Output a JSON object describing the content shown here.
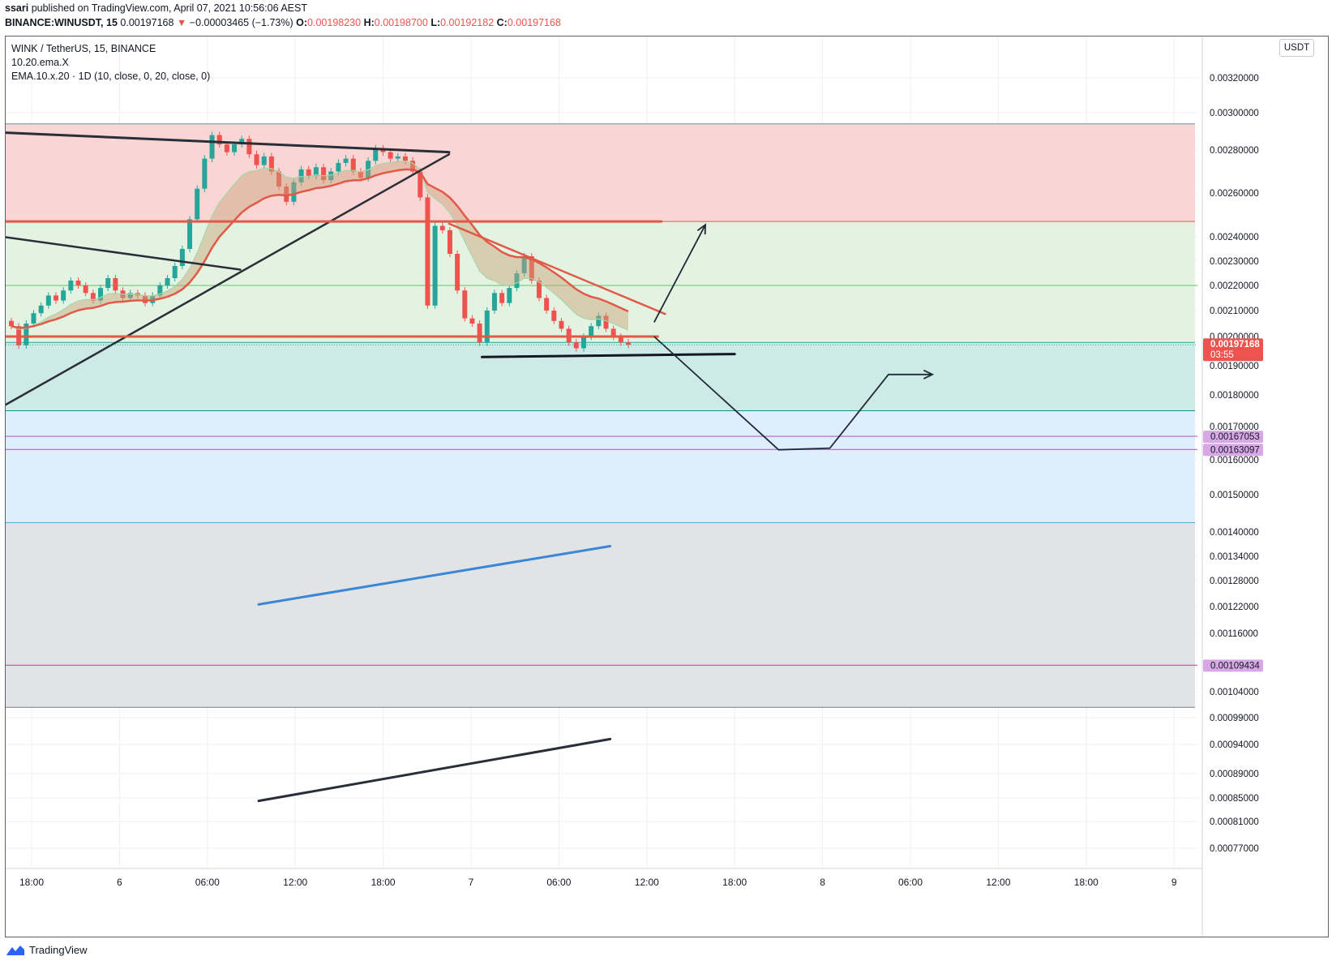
{
  "header": {
    "author": "ssari",
    "published_text": "published on TradingView.com, April 07, 2021 10:56:06 AEST",
    "symbol_line": "BINANCE:WINUSDT, 15",
    "last_price": "0.00197168",
    "change_arrow": "▼",
    "change": "−0.00003465 (−1.73%)",
    "open_label": "O:",
    "open": "0.00198230",
    "high_label": "H:",
    "high": "0.00198700",
    "low_label": "L:",
    "low": "0.00192182",
    "close_label": "C:",
    "close": "0.00197168"
  },
  "legend": {
    "title": "WINK / TetherUS, 15, BINANCE",
    "indicator1": "10.20.ema.X",
    "indicator2": "EMA.10.x.20 · 1D (10, close, 0, 20, close, 0)"
  },
  "currency_button": "USDT",
  "footer": {
    "brand": "TradingView"
  },
  "colors": {
    "red_zone": "#f9d5d3",
    "green_zone": "#e4f3e1",
    "teal_zone": "#cdeae7",
    "blue_zone": "#deeefc",
    "gray_zone": "#e2e3e5",
    "bullish": "#26a69a",
    "bearish": "#ef5350",
    "price_tag": "#ef5350",
    "purple_line": "#b063c8"
  },
  "chart_data": {
    "type": "candlestick",
    "ylim": [
      0.00073,
      0.00335
    ],
    "x_ticks": [
      "18:00",
      "6",
      "06:00",
      "12:00",
      "18:00",
      "7",
      "06:00",
      "12:00",
      "18:00",
      "8",
      "06:00",
      "12:00",
      "18:00",
      "9"
    ],
    "y_ticks": [
      "0.00320000",
      "0.00300000",
      "0.00280000",
      "0.00260000",
      "0.00240000",
      "0.00230000",
      "0.00220000",
      "0.00210000",
      "0.00200000",
      "0.00190000",
      "0.00180000",
      "0.00170000",
      "0.00160000",
      "0.00150000",
      "0.00140000",
      "0.00134000",
      "0.00128000",
      "0.00122000",
      "0.00116000",
      "0.00104000",
      "0.00099000",
      "0.00094000",
      "0.00089000",
      "0.00085000",
      "0.00081000",
      "0.00077000"
    ],
    "y_tick_values": [
      0.0032,
      0.003,
      0.0028,
      0.0026,
      0.0024,
      0.0023,
      0.0022,
      0.0021,
      0.002,
      0.0019,
      0.0018,
      0.0017,
      0.0016,
      0.0015,
      0.0014,
      0.00134,
      0.00128,
      0.00122,
      0.00116,
      0.00104,
      0.00099,
      0.00094,
      0.00089,
      0.00085,
      0.00081,
      0.00077
    ],
    "price_labels": [
      {
        "value": 0.00197168,
        "text": "0.00197168",
        "countdown": "03:55",
        "color": "#ef5350"
      },
      {
        "value": 0.00167053,
        "text": "0.00167053",
        "color": "#ce93d8"
      },
      {
        "value": 0.00163097,
        "text": "0.00163097",
        "color": "#ce93d8"
      },
      {
        "value": 0.00109434,
        "text": "0.00109434",
        "color": "#ce93d8"
      }
    ],
    "zones": [
      {
        "from": 0.00294,
        "to": 0.00247,
        "color": "#f9d5d3",
        "edge": "#5b8fb0",
        "tag": "0"
      },
      {
        "from": 0.00247,
        "to": 0.00198,
        "color": "#e4f3e1",
        "edge": "#ef5350",
        "tag": "0"
      },
      {
        "from": 0.00198,
        "to": 0.00175,
        "color": "#cdeae7",
        "edge": "#26a69a",
        "tag": "0"
      },
      {
        "from": 0.00175,
        "to": 0.001425,
        "color": "#deeefc",
        "edge": "#1e8a8a",
        "tag": "0"
      },
      {
        "from": 0.001425,
        "to": 0.00101,
        "color": "#e2e3e5",
        "edge": "#5aa9d6",
        "tag": "1"
      }
    ],
    "levels": [
      {
        "value": 0.0022,
        "color": "#81c784"
      },
      {
        "value": 0.00167053,
        "color": "#b063c8"
      },
      {
        "value": 0.00163097,
        "color": "#b063c8"
      },
      {
        "value": 0.00109434,
        "color": "#b063c8"
      }
    ],
    "trendlines": [
      {
        "x1": "05 14:15",
        "y1": 0.0029,
        "x2": "06 22:30",
        "y2": 0.00279,
        "color": "#2a2e39",
        "width": 3
      },
      {
        "x1": "05 15:30",
        "y1": 0.00175,
        "x2": "06 22:30",
        "y2": 0.00278,
        "color": "#2a2e39",
        "width": 2.5
      },
      {
        "x1": "05 15:30",
        "y1": 0.002405,
        "x2": "06 08:15",
        "y2": 0.002265,
        "color": "#2a2e39",
        "width": 2.5
      },
      {
        "x1": "05 15:30",
        "y1": 0.00247,
        "x2": "07 13:00",
        "y2": 0.00247,
        "color": "#e05a47",
        "width": 3
      },
      {
        "x1": "05 15:30",
        "y1": 0.002,
        "x2": "07 12:45",
        "y2": 0.002,
        "color": "#e05a47",
        "width": 3
      },
      {
        "x1": "06 22:30",
        "y1": 0.00246,
        "x2": "07 13:15",
        "y2": 0.002087,
        "color": "#e05a47",
        "width": 2.5
      },
      {
        "x1": "07 00:45",
        "y1": 0.00193,
        "x2": "07 18:00",
        "y2": 0.00194,
        "color": "#131722",
        "width": 3
      },
      {
        "x1": "06 09:30",
        "y1": 0.001225,
        "x2": "07 09:30",
        "y2": 0.001365,
        "color": "#3a87d6",
        "width": 3
      },
      {
        "x1": "06 09:30",
        "y1": 0.000845,
        "x2": "07 09:30",
        "y2": 0.00095,
        "color": "#2a2e39",
        "width": 3
      }
    ],
    "projection_paths": [
      {
        "points": [
          [
            "07 12:30",
            0.002055
          ],
          [
            "07 16:00",
            0.002455
          ]
        ],
        "arrow": true
      },
      {
        "points": [
          [
            "07 12:30",
            0.002
          ],
          [
            "07 21:00",
            0.00163
          ],
          [
            "08 00:30",
            0.001635
          ],
          [
            "08 04:30",
            0.00187
          ],
          [
            "08 07:30",
            0.00187
          ]
        ],
        "arrow": true
      }
    ],
    "price_series": [
      0.00204,
      0.00197,
      0.00205,
      0.00209,
      0.00212,
      0.00216,
      0.00214,
      0.00218,
      0.00222,
      0.0022,
      0.00217,
      0.00214,
      0.00219,
      0.00223,
      0.00218,
      0.00215,
      0.00217,
      0.00216,
      0.00213,
      0.00216,
      0.0022,
      0.00223,
      0.00228,
      0.00235,
      0.00248,
      0.00262,
      0.00276,
      0.00288,
      0.00283,
      0.00279,
      0.00283,
      0.00286,
      0.00278,
      0.00273,
      0.00277,
      0.0027,
      0.00263,
      0.00256,
      0.00265,
      0.00271,
      0.00268,
      0.00272,
      0.00266,
      0.0027,
      0.00274,
      0.00276,
      0.0027,
      0.00267,
      0.00275,
      0.00281,
      0.00279,
      0.00276,
      0.00277,
      0.00275,
      0.0027,
      0.00258,
      0.00212,
      0.00245,
      0.00243,
      0.00233,
      0.00218,
      0.00207,
      0.00205,
      0.00198,
      0.0021,
      0.00217,
      0.00213,
      0.00219,
      0.00225,
      0.00232,
      0.00222,
      0.00215,
      0.0021,
      0.00206,
      0.00203,
      0.00198,
      0.00196,
      0.002,
      0.00204,
      0.00208,
      0.00203,
      0.002,
      0.00198,
      0.00197168
    ]
  }
}
